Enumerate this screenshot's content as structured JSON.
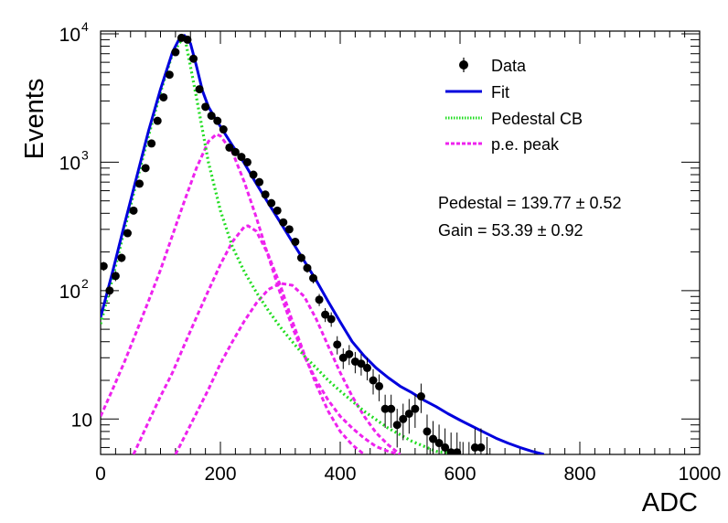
{
  "chart_data": {
    "type": "scatter",
    "title": "",
    "xlabel": "ADC",
    "ylabel": "Events",
    "xlim": [
      0,
      1000
    ],
    "ylim": [
      5.3,
      10500
    ],
    "y_scale": "log",
    "grid": false,
    "legend_position": "top-right",
    "x_ticks": [
      0,
      200,
      400,
      600,
      800,
      1000
    ],
    "x_tick_labels": [
      "0",
      "200",
      "400",
      "600",
      "800",
      "1000"
    ],
    "y_ticks": [
      10,
      100,
      1000,
      10000
    ],
    "y_tick_base": "10",
    "y_tick_exponents": [
      "",
      "2",
      "3",
      "4"
    ],
    "legend": [
      {
        "label": "Data",
        "kind": "marker",
        "color": "#000000"
      },
      {
        "label": "Fit",
        "kind": "line",
        "color": "#0000dd"
      },
      {
        "label": "Pedestal CB",
        "kind": "dotted",
        "color": "#22dd22"
      },
      {
        "label": "p.e. peak",
        "kind": "dashed",
        "color": "#ee22ee"
      }
    ],
    "annotations": {
      "pedestal": "Pedestal = 139.77 ± 0.52",
      "gain": "Gain = 53.39 ± 0.92"
    },
    "series": [
      {
        "name": "Data",
        "kind": "points",
        "color": "#000000",
        "x": [
          5,
          15,
          25,
          35,
          45,
          55,
          65,
          75,
          85,
          95,
          105,
          115,
          125,
          135,
          145,
          155,
          165,
          175,
          185,
          195,
          205,
          215,
          225,
          235,
          245,
          255,
          265,
          275,
          285,
          295,
          305,
          315,
          325,
          335,
          345,
          355,
          365,
          375,
          385,
          395,
          405,
          415,
          425,
          435,
          445,
          455,
          465,
          475,
          485,
          495,
          505,
          515,
          525,
          535,
          545,
          555,
          565,
          575,
          585,
          595,
          605,
          615,
          625,
          635,
          645
        ],
        "y": [
          155,
          100,
          130,
          180,
          280,
          420,
          680,
          900,
          1400,
          2100,
          3200,
          4800,
          7200,
          9300,
          9000,
          6400,
          3700,
          2700,
          2300,
          2100,
          1800,
          1300,
          1200,
          1100,
          1000,
          800,
          700,
          560,
          480,
          420,
          340,
          300,
          240,
          180,
          150,
          125,
          85,
          65,
          60,
          38,
          30,
          32,
          28,
          27,
          25,
          20,
          18,
          12,
          12,
          9,
          10,
          11,
          12,
          15,
          8,
          7,
          6.5,
          6,
          5.5,
          5.5,
          4.5,
          4.5,
          6,
          6,
          5
        ]
      },
      {
        "name": "Fit",
        "kind": "line",
        "color": "#0000dd",
        "x": [
          0,
          20,
          40,
          60,
          80,
          100,
          120,
          130,
          140,
          150,
          160,
          170,
          180,
          190,
          200,
          220,
          240,
          260,
          280,
          300,
          320,
          340,
          360,
          380,
          400,
          420,
          440,
          460,
          480,
          500,
          520,
          540,
          560,
          580,
          600,
          620,
          640,
          660,
          680,
          700,
          720,
          740
        ],
        "y": [
          62,
          140,
          330,
          760,
          1750,
          3700,
          7200,
          8900,
          9700,
          8400,
          5600,
          3600,
          2700,
          2250,
          1900,
          1350,
          980,
          680,
          480,
          340,
          240,
          170,
          120,
          82,
          57,
          40,
          31,
          25,
          21,
          18,
          16,
          14,
          12.5,
          11,
          9.8,
          8.8,
          7.9,
          7.1,
          6.5,
          6.0,
          5.6,
          5.3
        ]
      },
      {
        "name": "Pedestal CB",
        "kind": "dotted",
        "color": "#22dd22",
        "x": [
          0,
          20,
          40,
          60,
          80,
          100,
          120,
          140,
          160,
          180,
          200,
          220,
          240,
          260,
          280,
          300,
          320,
          340,
          360,
          380,
          400,
          440,
          480,
          520,
          560,
          600
        ],
        "y": [
          55,
          125,
          300,
          700,
          1600,
          3500,
          7000,
          9700,
          3200,
          1000,
          420,
          220,
          140,
          97,
          70,
          52,
          40,
          31,
          25,
          20,
          16.5,
          11.5,
          8.5,
          6.7,
          5.6,
          5.3
        ]
      },
      {
        "name": "p.e. peak 1",
        "kind": "dashed",
        "color": "#ee22ee",
        "x": [
          0,
          20,
          40,
          60,
          80,
          100,
          120,
          140,
          160,
          180,
          193,
          200,
          220,
          240,
          260,
          280,
          300,
          320,
          340,
          360,
          380,
          400,
          420,
          440,
          460,
          480,
          500
        ],
        "y": [
          10.5,
          17,
          28,
          48,
          83,
          145,
          270,
          500,
          900,
          1450,
          1650,
          1600,
          1200,
          700,
          370,
          185,
          95,
          52,
          31,
          20,
          14,
          10.5,
          8.5,
          7.1,
          6.1,
          5.6,
          5.3
        ]
      },
      {
        "name": "p.e. peak 2",
        "kind": "dashed",
        "color": "#ee22ee",
        "x": [
          55,
          80,
          100,
          120,
          140,
          160,
          180,
          200,
          220,
          240,
          246,
          260,
          280,
          300,
          320,
          340,
          360,
          380,
          400,
          420,
          440
        ],
        "y": [
          5.3,
          9.5,
          15,
          23,
          38,
          62,
          100,
          160,
          240,
          315,
          320,
          290,
          190,
          110,
          58,
          32,
          18.5,
          11.5,
          8,
          6.3,
          5.3
        ]
      },
      {
        "name": "p.e. peak 3",
        "kind": "dashed",
        "color": "#ee22ee",
        "x": [
          125,
          150,
          180,
          200,
          220,
          240,
          260,
          280,
          300,
          320,
          340,
          360,
          380,
          400,
          420,
          440,
          460,
          480,
          500
        ],
        "y": [
          5.3,
          9,
          17,
          27,
          40,
          58,
          80,
          102,
          114,
          110,
          90,
          60,
          37,
          23,
          15,
          10.5,
          7.8,
          6.3,
          5.3
        ]
      }
    ]
  }
}
